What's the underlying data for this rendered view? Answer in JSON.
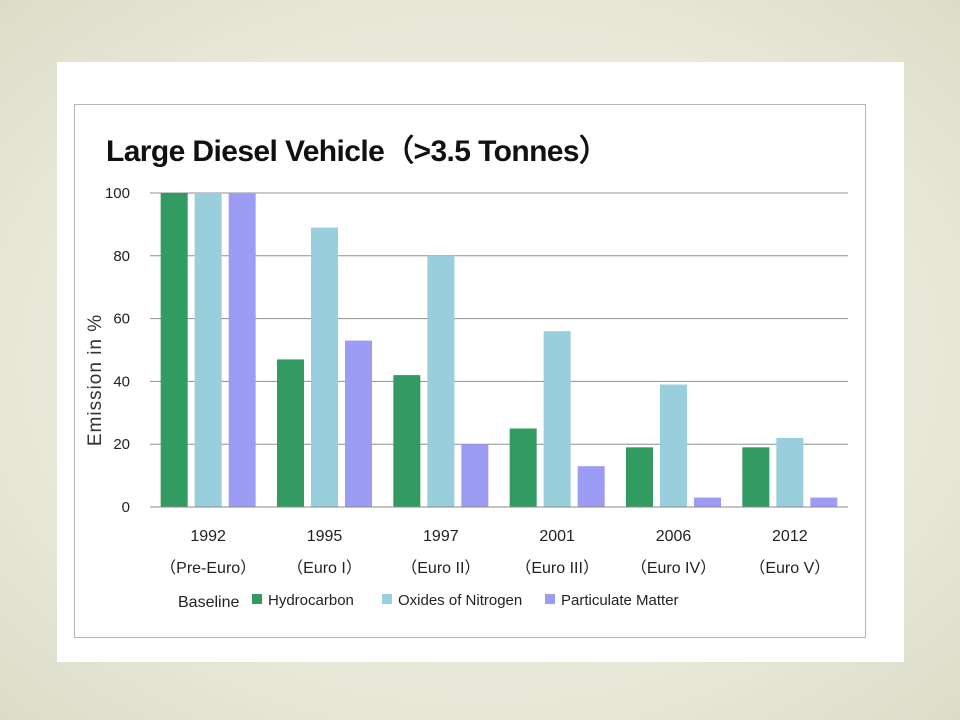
{
  "chart_data": {
    "type": "bar",
    "title": "Large Diesel Vehicle（>3.5 Tonnes）",
    "ylabel": "Emission in %",
    "xlabel": "",
    "ylim": [
      0,
      100
    ],
    "yticks": [
      0,
      20,
      40,
      60,
      80,
      100
    ],
    "grid": true,
    "legend_position": "bottom",
    "categories": [
      {
        "year": "1992",
        "stage": "（Pre-Euro）"
      },
      {
        "year": "1995",
        "stage": "（Euro I）"
      },
      {
        "year": "1997",
        "stage": "（Euro II）"
      },
      {
        "year": "2001",
        "stage": "（Euro III）"
      },
      {
        "year": "2006",
        "stage": "（Euro IV）"
      },
      {
        "year": "2012",
        "stage": "（Euro V）"
      }
    ],
    "baseline_label": "Baseline",
    "series": [
      {
        "name": "Hydrocarbon",
        "color": "#319b62",
        "values": [
          100,
          47,
          42,
          25,
          19,
          19
        ]
      },
      {
        "name": "Oxides of Nitrogen",
        "color": "#99cedd",
        "values": [
          100,
          89,
          80,
          56,
          39,
          22
        ]
      },
      {
        "name": "Particulate Matter",
        "color": "#9d9cf5",
        "values": [
          100,
          53,
          20,
          13,
          3,
          3
        ]
      }
    ]
  }
}
